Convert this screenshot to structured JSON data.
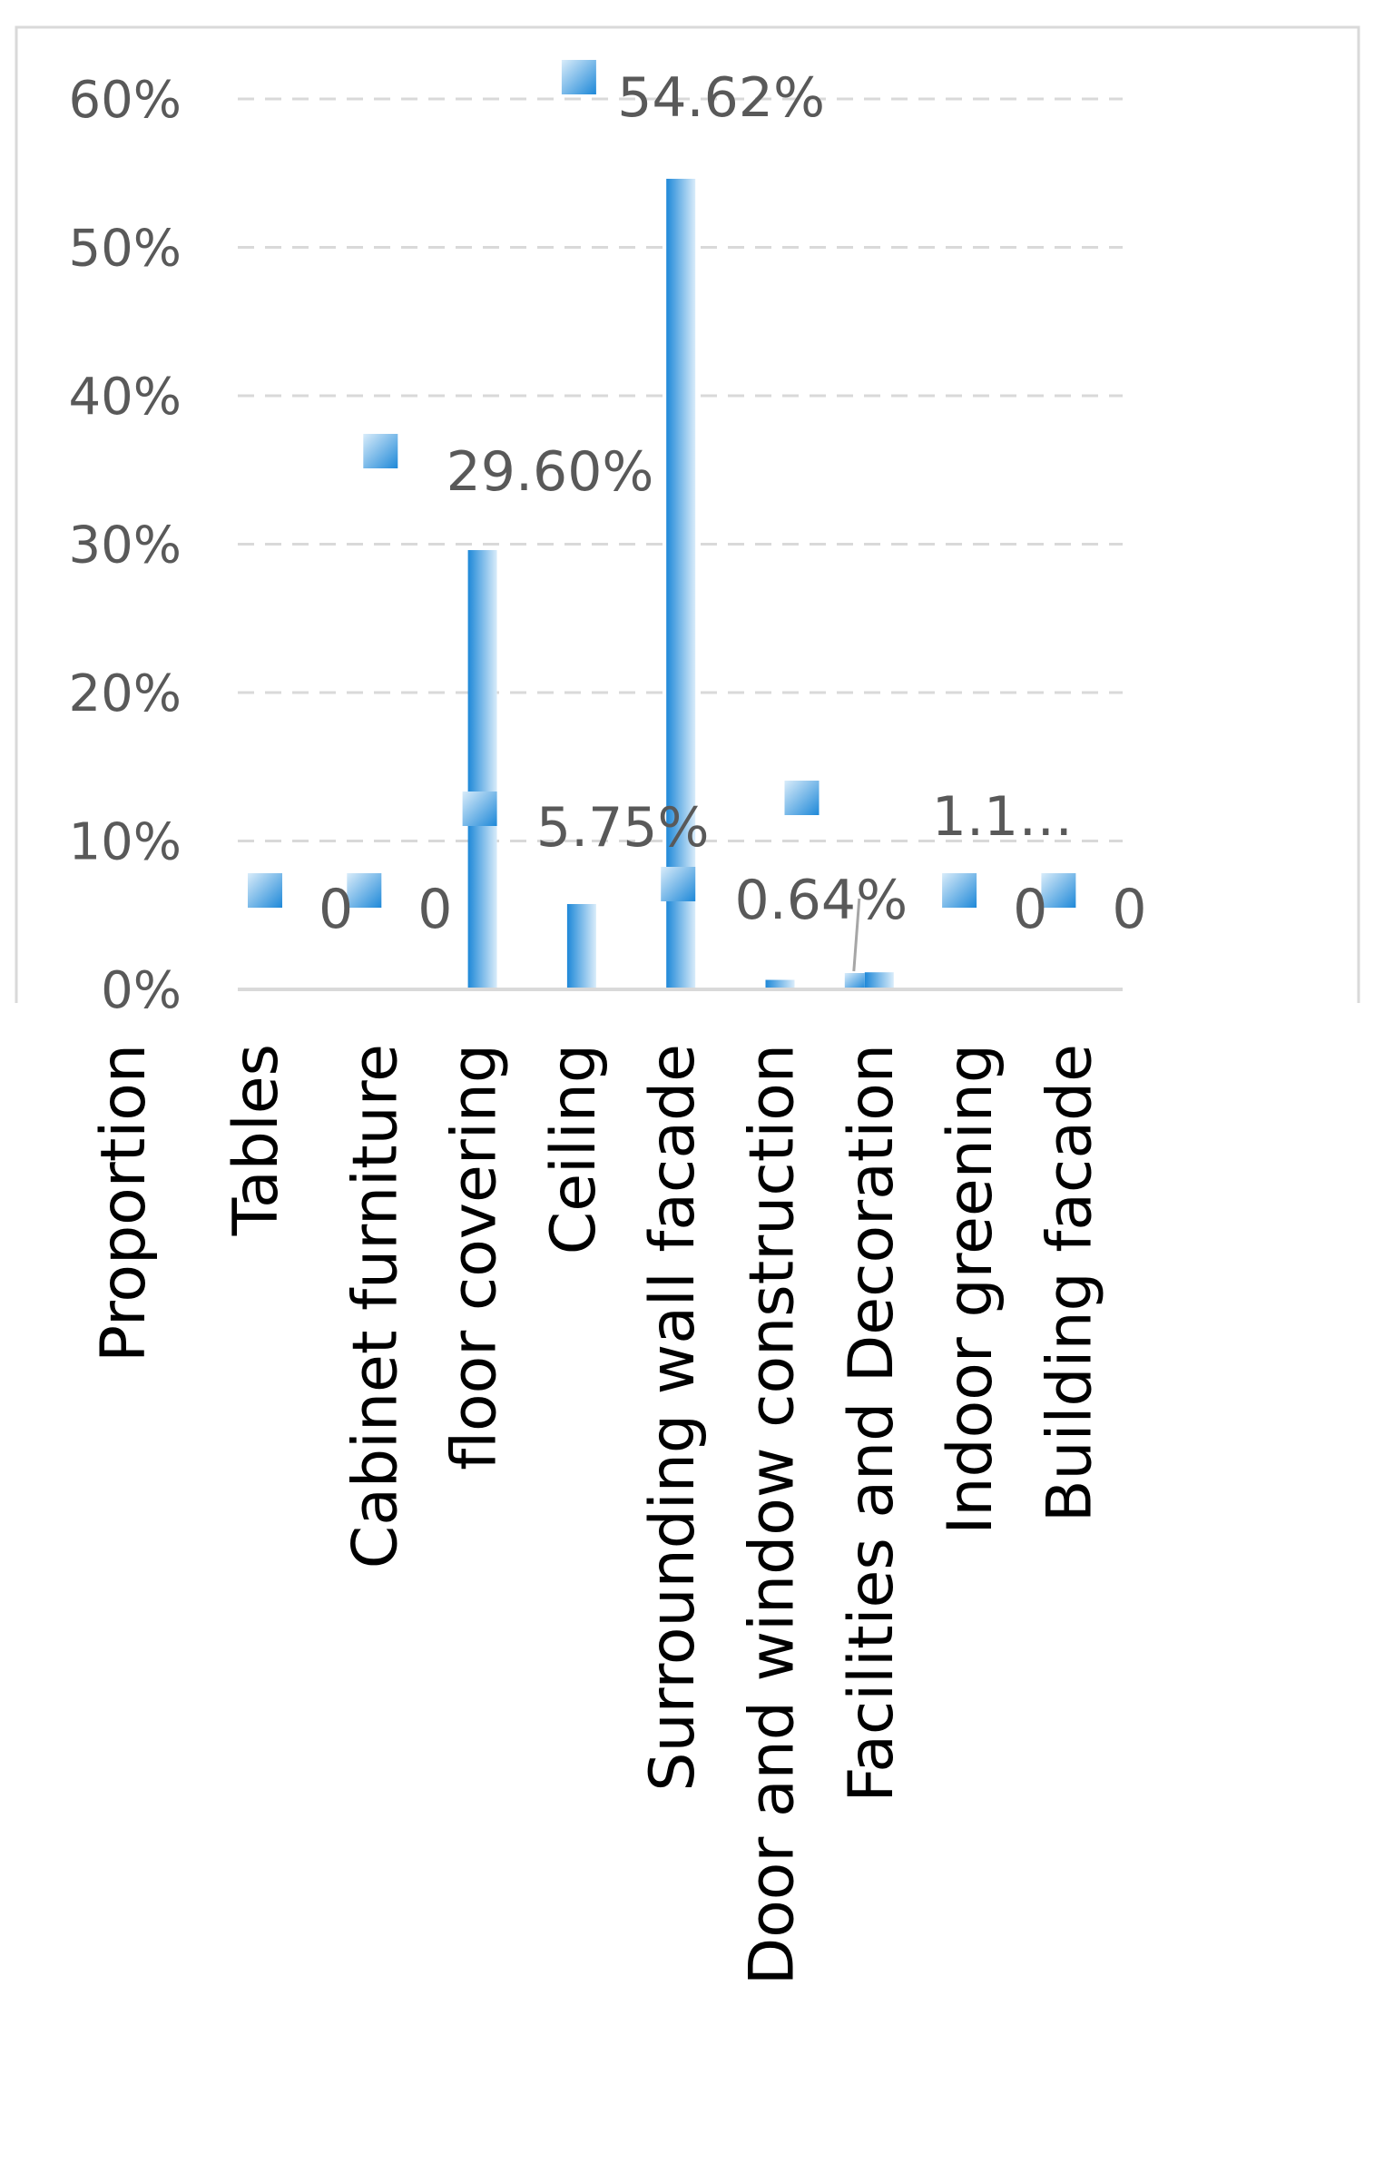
{
  "chart_data": {
    "type": "bar",
    "categories": [
      "Tables",
      "Cabinet furniture",
      "floor covering",
      "Ceiling",
      "Surrounding wall facade",
      "Door and window construction",
      "Facilities and Decoration",
      "Indoor greening",
      "Building facade"
    ],
    "series": [
      {
        "name": "Proportion",
        "values": [
          0,
          0,
          29.6,
          5.75,
          54.62,
          0.64,
          1.15,
          0,
          0
        ],
        "labels": [
          "0",
          "0",
          "29.60%",
          "5.75%",
          "54.62%",
          "0.64%",
          "1.1…",
          "0",
          "0"
        ]
      }
    ],
    "y_ticks": [
      "0%",
      "10%",
      "20%",
      "30%",
      "40%",
      "50%",
      "60%"
    ],
    "ylim": [
      0,
      60
    ],
    "grid": true,
    "title": "",
    "xlabel": "",
    "ylabel": "",
    "colors": {
      "bar_dark": "#1e88d8",
      "bar_light": "#d9ecfa",
      "text": "#595959",
      "label_text": "#000000",
      "grid": "#d9d9d9",
      "border": "#d9d9d9"
    }
  }
}
